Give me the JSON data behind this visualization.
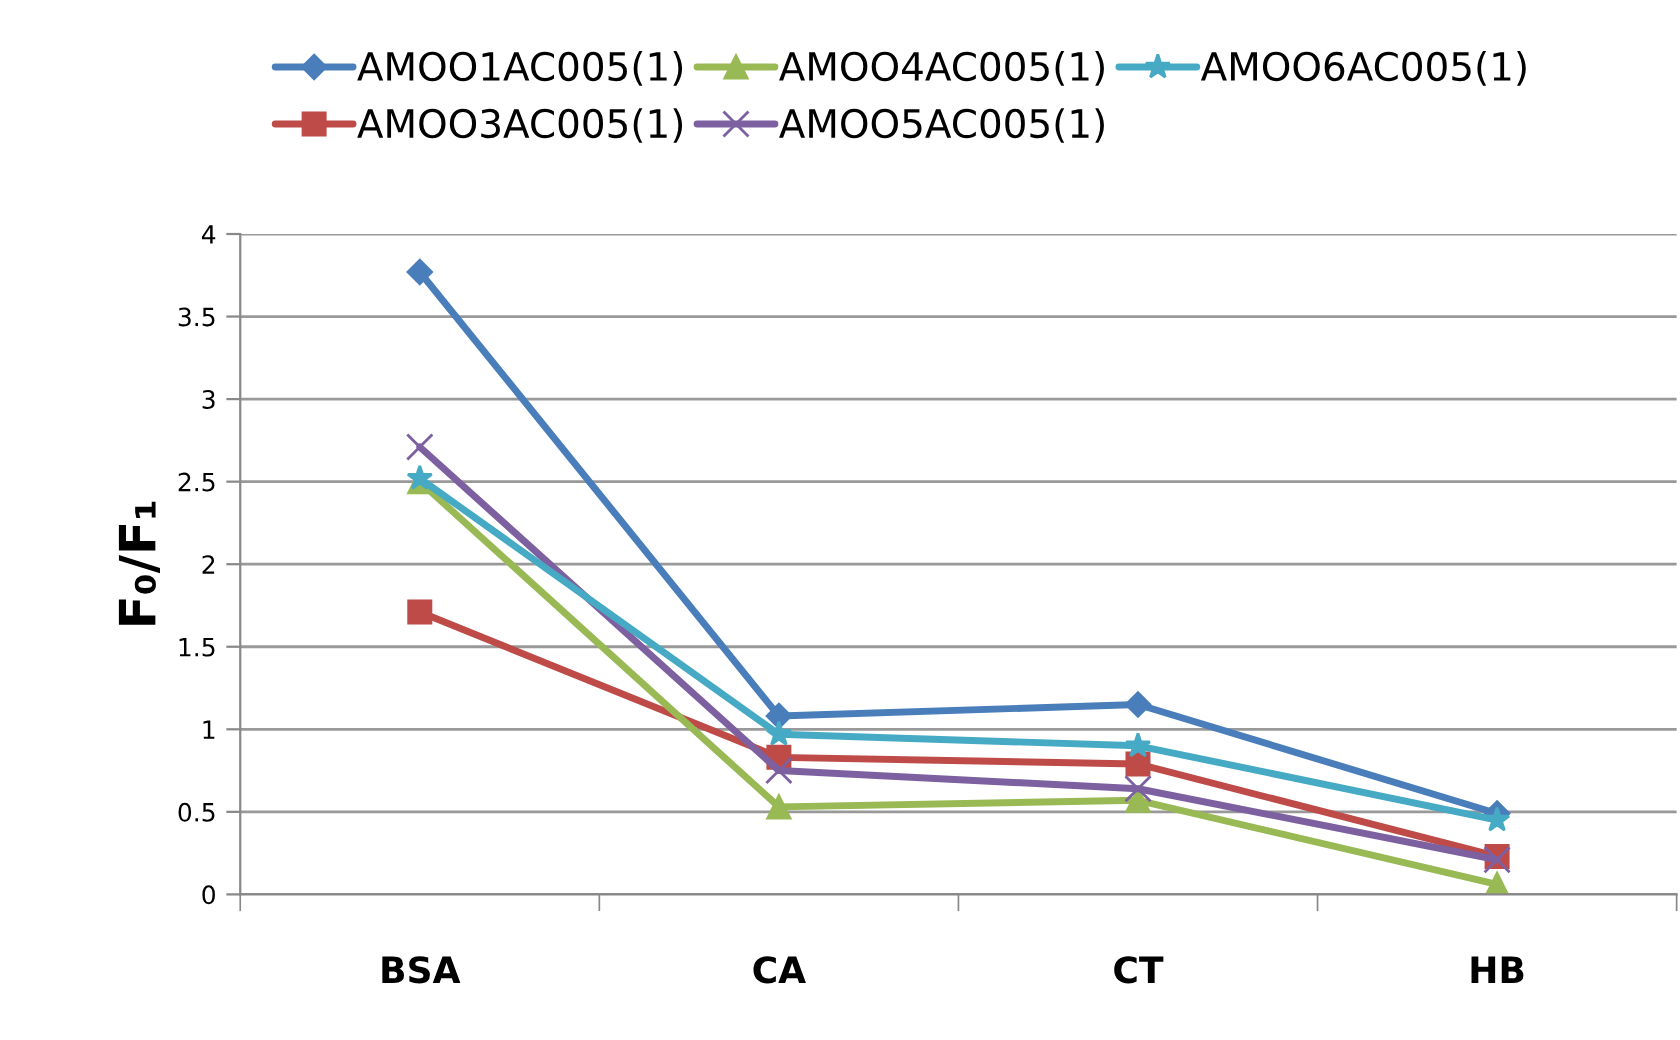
{
  "chart_data": {
    "type": "line",
    "ylabel": "F₀/F₁",
    "categories": [
      "BSA",
      "CA",
      "CT",
      "HB"
    ],
    "series": [
      {
        "name": "AMOO1AC005(1)",
        "color": "#4a7ebb",
        "marker": "diamond",
        "values": [
          3.77,
          1.08,
          1.15,
          0.49
        ]
      },
      {
        "name": "AMOO3AC005(1)",
        "color": "#be4b48",
        "marker": "square",
        "values": [
          1.71,
          0.83,
          0.79,
          0.23
        ]
      },
      {
        "name": "AMOO4AC005(1)",
        "color": "#98b954",
        "marker": "triangle",
        "values": [
          2.5,
          0.53,
          0.57,
          0.06
        ]
      },
      {
        "name": "AMOO5AC005(1)",
        "color": "#7d60a0",
        "marker": "cross",
        "values": [
          2.71,
          0.75,
          0.64,
          0.21
        ]
      },
      {
        "name": "AMOO6AC005(1)",
        "color": "#46aac5",
        "marker": "star",
        "values": [
          2.52,
          0.97,
          0.9,
          0.45
        ]
      }
    ],
    "ylim": [
      0,
      4
    ],
    "yticks": [
      0,
      0.5,
      1,
      1.5,
      2,
      2.5,
      3,
      3.5,
      4
    ],
    "grid": "y",
    "legend": "top"
  }
}
